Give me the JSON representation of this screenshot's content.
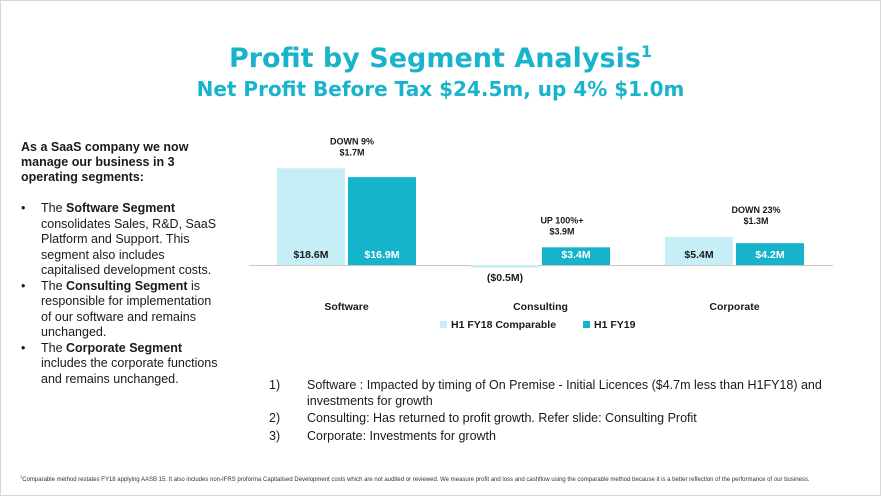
{
  "title": "Profit by Segment Analysis",
  "title_sup": "1",
  "subtitle": "Net Profit Before Tax $24.5m, up 4% $1.0m",
  "intro": "As a SaaS company we now manage our business in 3 operating segments:",
  "bullets": [
    {
      "pre": "The ",
      "bold": "Software Segment",
      "post": " consolidates Sales, R&D, SaaS Platform and Support. This segment also includes capitalised development costs."
    },
    {
      "pre": "The ",
      "bold": "Consulting Segment",
      "post": " is responsible for implementation of our software and remains unchanged."
    },
    {
      "pre": "The ",
      "bold": "Corporate Segment",
      "post": " includes the corporate functions and remains unchanged."
    }
  ],
  "bullet_symbol": "•",
  "chart_data": {
    "type": "bar",
    "categories": [
      "Software",
      "Consulting",
      "Corporate"
    ],
    "series": [
      {
        "name": "H1 FY18 Comparable",
        "values": [
          18.6,
          -0.5,
          5.4
        ],
        "labels": [
          "$18.6M",
          "($0.5M)",
          "$5.4M"
        ],
        "color": "#c5eef7"
      },
      {
        "name": "H1 FY19",
        "values": [
          16.9,
          3.4,
          4.2
        ],
        "labels": [
          "$16.9M",
          "$3.4M",
          "$4.2M"
        ],
        "color": "#15b3cc"
      }
    ],
    "annotations": [
      {
        "line1": "DOWN 9%",
        "line2": "$1.7M"
      },
      {
        "line1": "UP 100%+",
        "line2": "$3.9M"
      },
      {
        "line1": "DOWN 23%",
        "line2": "$1.3M"
      }
    ],
    "ylim": [
      -2,
      20
    ],
    "grid": false,
    "legend_position": "bottom-center"
  },
  "notes": [
    {
      "num": "1)",
      "text": "Software : Impacted by timing of On Premise - Initial Licences ($4.7m less than H1FY18) and investments for growth"
    },
    {
      "num": "2)",
      "text": "Consulting: Has returned to profit growth. Refer slide: Consulting Profit"
    },
    {
      "num": "3)",
      "text": "Corporate: Investments for growth"
    }
  ],
  "footnote_sup": "1",
  "footnote": "Comparable method restates FY18 applying AASB 15. It also includes non-IFRS proforma Capitalised Development costs which are not audited or reviewed. We measure profit and loss and cashflow using the comparable method because it is a better reflection of the performance of our business."
}
